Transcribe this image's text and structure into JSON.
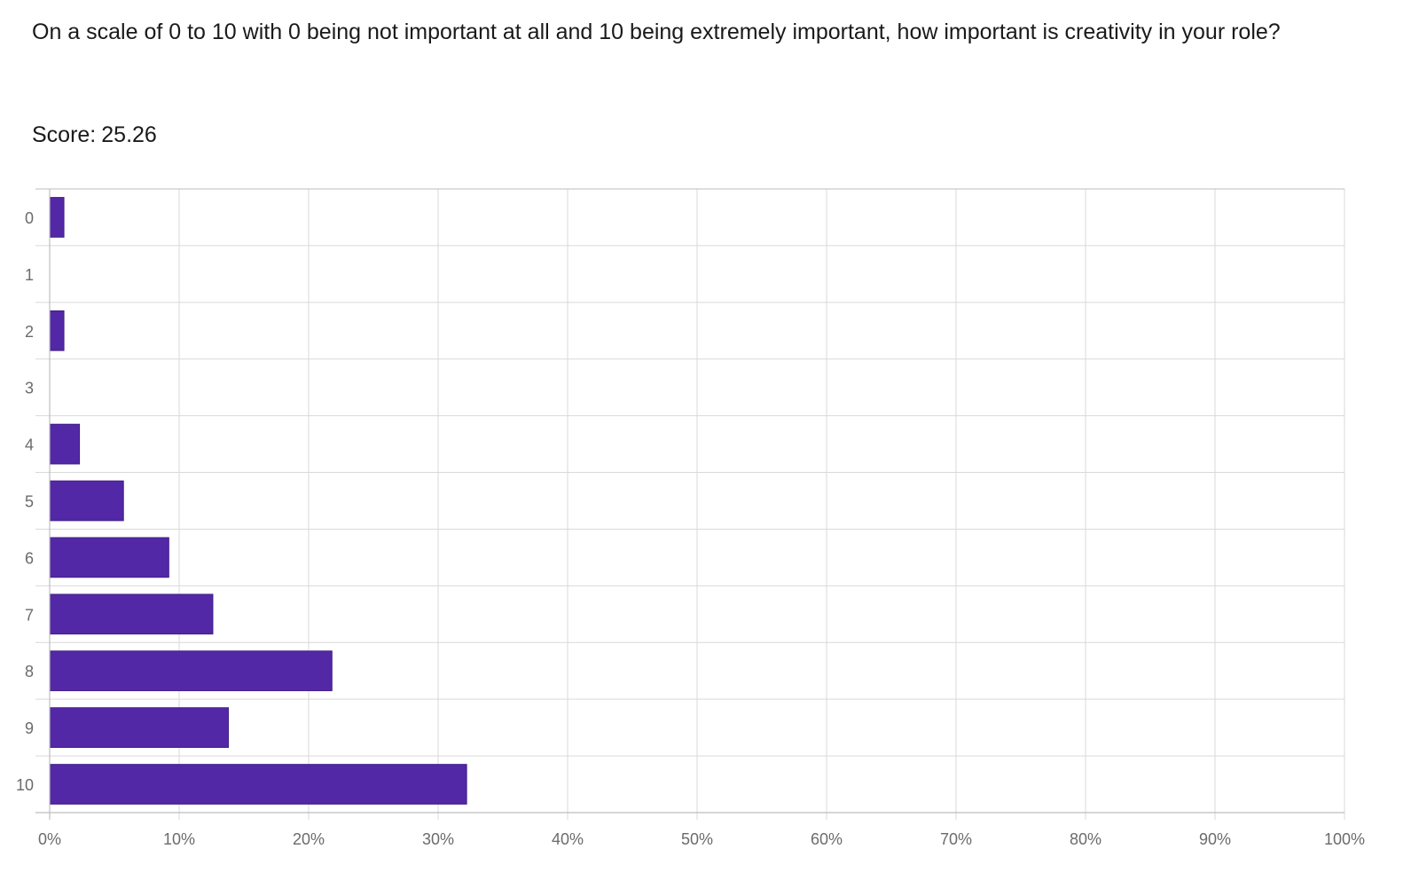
{
  "question": {
    "text": "On a scale of 0 to 10 with 0 being not important at all and 10 being extremely important, how important is creativity in your role?"
  },
  "score": {
    "label": "Score:",
    "value": "25.26"
  },
  "colors": {
    "bar_fill": "#5328a6",
    "bar_stroke": "#3f1c85",
    "grid": "#d9d9d9",
    "axis": "#bdbdbd",
    "tick_text": "#6b6b6b"
  },
  "chart_data": {
    "type": "bar",
    "orientation": "horizontal",
    "categories": [
      "0",
      "1",
      "2",
      "3",
      "4",
      "5",
      "6",
      "7",
      "8",
      "9",
      "10"
    ],
    "values": [
      1.1,
      0,
      1.1,
      0,
      2.3,
      5.7,
      9.2,
      12.6,
      21.8,
      13.8,
      32.2
    ],
    "xlim": [
      0,
      100
    ],
    "x_ticks": [
      "0%",
      "10%",
      "20%",
      "30%",
      "40%",
      "50%",
      "60%",
      "70%",
      "80%",
      "90%",
      "100%"
    ],
    "grid": true,
    "legend": "none"
  }
}
